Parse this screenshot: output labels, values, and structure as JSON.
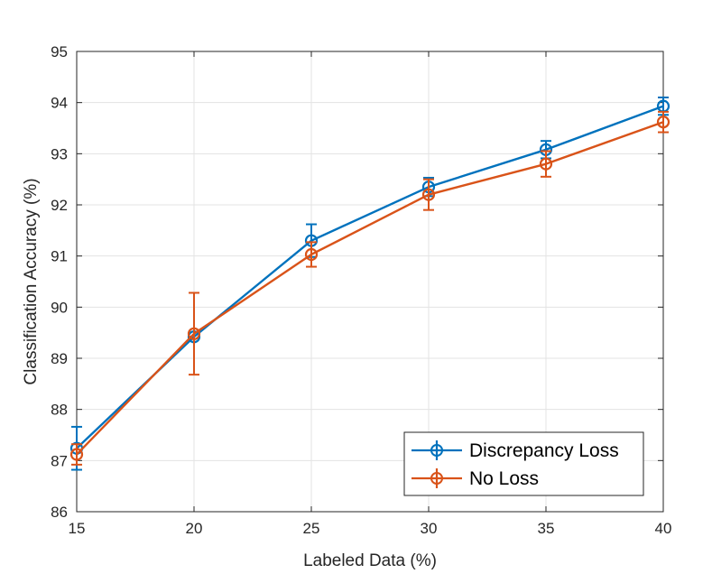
{
  "chart_data": {
    "type": "line",
    "title": "",
    "xlabel": "Labeled Data (%)",
    "ylabel": "Classification Accuracy (%)",
    "xlim": [
      15,
      40
    ],
    "ylim": [
      86,
      95
    ],
    "xticks": [
      15,
      20,
      25,
      30,
      35,
      40
    ],
    "yticks": [
      86,
      87,
      88,
      89,
      90,
      91,
      92,
      93,
      94,
      95
    ],
    "grid": true,
    "legend_position": "bottom-right",
    "x": [
      15,
      20,
      25,
      30,
      35,
      40
    ],
    "series": [
      {
        "name": "Discrepancy Loss",
        "color": "#0072BD",
        "marker": "circle",
        "values": [
          87.24,
          89.42,
          91.3,
          92.35,
          93.08,
          93.93
        ],
        "errors": [
          0.42,
          0.0,
          0.32,
          0.18,
          0.17,
          0.17
        ]
      },
      {
        "name": "No Loss",
        "color": "#D95319",
        "marker": "circle",
        "values": [
          87.12,
          89.48,
          91.03,
          92.2,
          92.8,
          93.62
        ],
        "errors": [
          0.2,
          0.8,
          0.24,
          0.3,
          0.25,
          0.2
        ]
      }
    ]
  }
}
